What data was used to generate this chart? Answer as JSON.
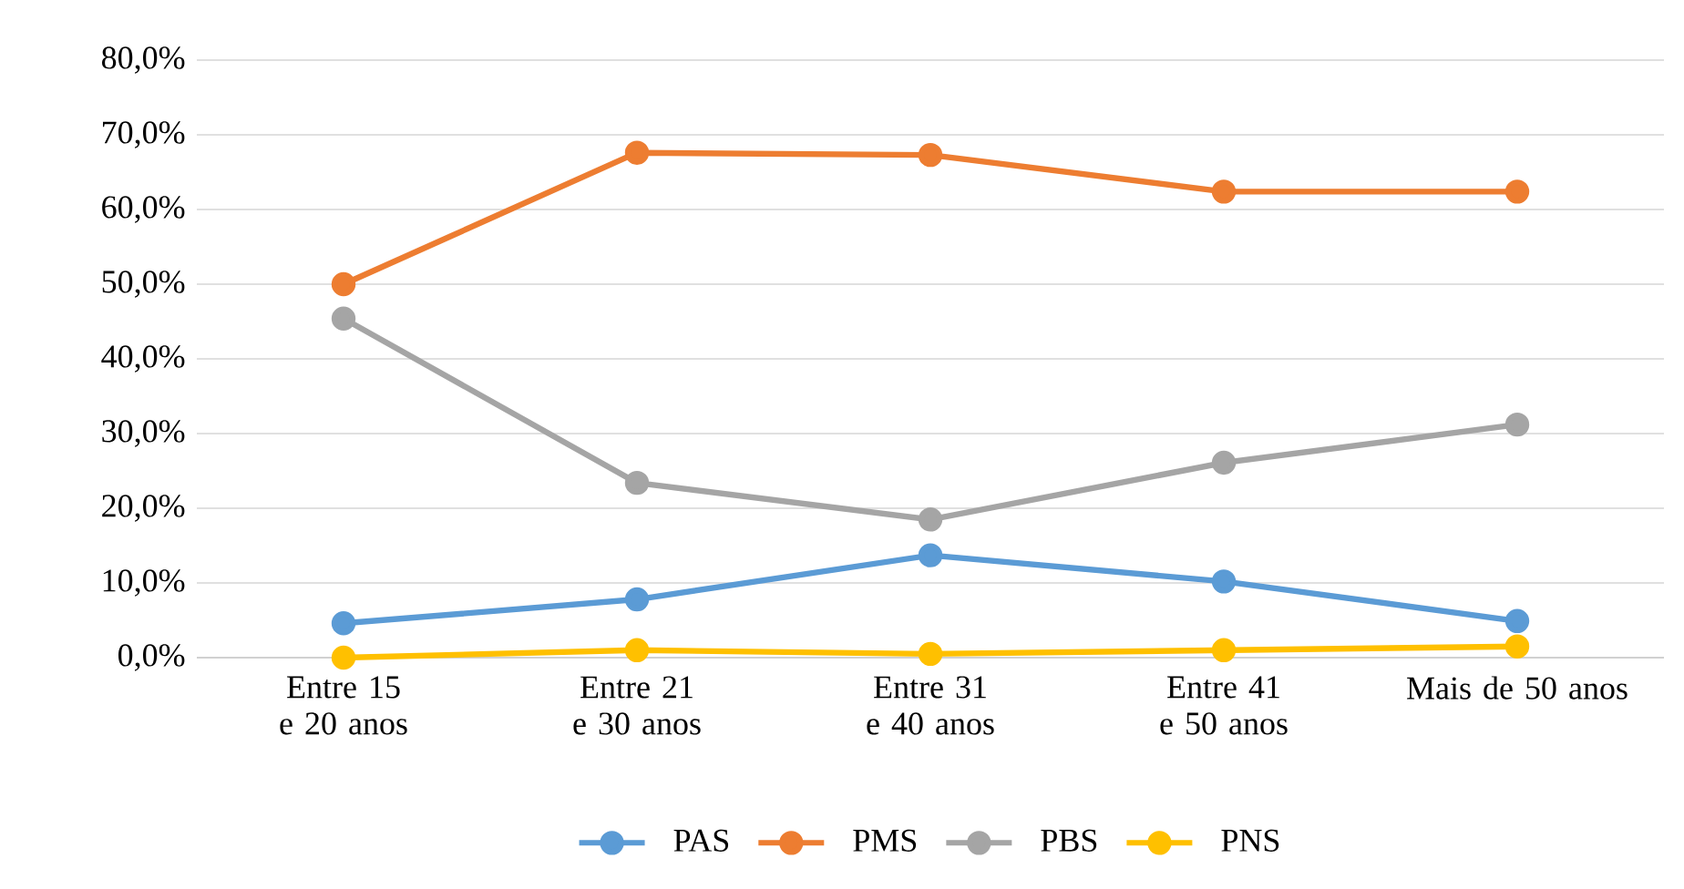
{
  "chart_data": {
    "type": "line",
    "categories": [
      "Entre 15 e 20 anos",
      "Entre 21 e 30 anos",
      "Entre 31 e 40 anos",
      "Entre 41 e 50 anos",
      "Mais de 50 anos"
    ],
    "series": [
      {
        "name": "PAS",
        "color": "#5b9bd5",
        "values": [
          4.6,
          7.8,
          13.7,
          10.2,
          4.9
        ]
      },
      {
        "name": "PMS",
        "color": "#ed7d31",
        "values": [
          50.0,
          67.6,
          67.3,
          62.4,
          62.4
        ]
      },
      {
        "name": "PBS",
        "color": "#a5a5a5",
        "values": [
          45.4,
          23.4,
          18.5,
          26.1,
          31.2
        ]
      },
      {
        "name": "PNS",
        "color": "#ffc000",
        "values": [
          0.0,
          1.0,
          0.5,
          1.0,
          1.5
        ]
      }
    ],
    "ylim": [
      0,
      80
    ],
    "yticks": [
      {
        "value": 0,
        "label": "0,0%"
      },
      {
        "value": 10,
        "label": "10,0%"
      },
      {
        "value": 20,
        "label": "20,0%"
      },
      {
        "value": 30,
        "label": "30,0%"
      },
      {
        "value": 40,
        "label": "40,0%"
      },
      {
        "value": 50,
        "label": "50,0%"
      },
      {
        "value": 60,
        "label": "60,0%"
      },
      {
        "value": 70,
        "label": "70,0%"
      },
      {
        "value": 80,
        "label": "80,0%"
      }
    ],
    "grid": "y",
    "legend": "bottom",
    "marker": "circle",
    "line_style": "solid"
  }
}
